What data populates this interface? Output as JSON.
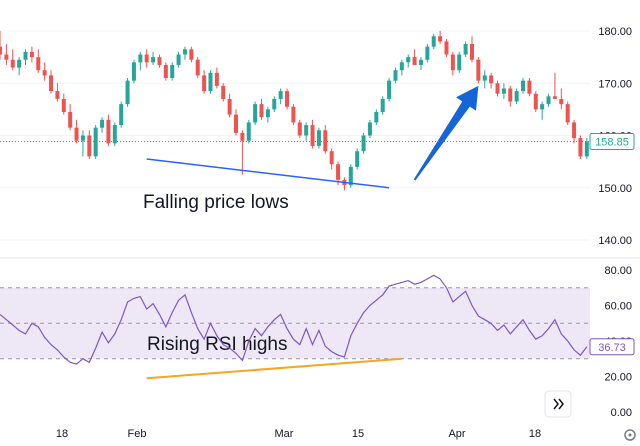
{
  "chart_data": [
    {
      "type": "candlestick",
      "y_ticks": [
        "180.00",
        "170.00",
        "160.00",
        "150.00",
        "140.00"
      ],
      "ylim": [
        136,
        186
      ],
      "last_price_label": "158.85",
      "last_price": 158.85,
      "x_ticks": [
        "18",
        "Feb",
        "Mar",
        "15",
        "Apr",
        "18"
      ],
      "annotation": "Falling price lows",
      "trendline": {
        "from": [
          23,
          155.5
        ],
        "to": [
          61,
          150.0
        ]
      },
      "arrow": {
        "from": [
          65,
          151.5
        ],
        "to": [
          75,
          169.5
        ]
      },
      "up_color": "#26a69a",
      "down_color": "#ef5350",
      "trendline_color": "#2962ff",
      "arrow_color": "#1565d8",
      "candles": [
        [
          177,
          180,
          174.5,
          175.5
        ],
        [
          175.5,
          177.5,
          173.5,
          174.5
        ],
        [
          174.5,
          176.5,
          172.5,
          173.0
        ],
        [
          173.0,
          175.0,
          171.5,
          174.5
        ],
        [
          174.5,
          176.5,
          173.5,
          176.0
        ],
        [
          176.0,
          177.0,
          174.0,
          175.0
        ],
        [
          175.0,
          176.5,
          172.0,
          172.5
        ],
        [
          172.5,
          174.0,
          170.5,
          171.5
        ],
        [
          171.5,
          172.5,
          168.0,
          168.5
        ],
        [
          168.5,
          170.0,
          166.5,
          167.0
        ],
        [
          167.0,
          168.0,
          164.0,
          164.5
        ],
        [
          164.5,
          166.0,
          161.0,
          161.5
        ],
        [
          161.5,
          163.0,
          158.5,
          159.0
        ],
        [
          159.0,
          161.0,
          156.0,
          160.0
        ],
        [
          160.0,
          161.0,
          155.5,
          156.0
        ],
        [
          156.0,
          162.0,
          155.5,
          161.5
        ],
        [
          161.5,
          163.5,
          160.5,
          163.0
        ],
        [
          163.0,
          164.0,
          158.0,
          158.5
        ],
        [
          158.5,
          162.5,
          158.0,
          162.0
        ],
        [
          162.0,
          166.5,
          161.5,
          166.0
        ],
        [
          166.0,
          171.0,
          165.5,
          170.5
        ],
        [
          170.5,
          174.5,
          170.0,
          174.0
        ],
        [
          174.0,
          176.0,
          172.5,
          175.5
        ],
        [
          175.5,
          176.5,
          173.0,
          174.0
        ],
        [
          174.0,
          176.0,
          173.5,
          175.0
        ],
        [
          175.0,
          175.5,
          173.0,
          173.5
        ],
        [
          173.5,
          174.0,
          170.5,
          171.0
        ],
        [
          171.0,
          174.0,
          170.5,
          173.5
        ],
        [
          173.5,
          176.0,
          173.0,
          175.5
        ],
        [
          175.5,
          177.0,
          174.5,
          176.5
        ],
        [
          176.5,
          177.0,
          174.0,
          174.5
        ],
        [
          174.5,
          175.0,
          171.0,
          171.5
        ],
        [
          171.5,
          172.5,
          168.0,
          168.5
        ],
        [
          168.5,
          172.5,
          168.0,
          172.0
        ],
        [
          172.0,
          173.0,
          169.0,
          169.5
        ],
        [
          169.5,
          170.0,
          166.5,
          167.0
        ],
        [
          167.0,
          168.0,
          163.5,
          164.0
        ],
        [
          164.0,
          165.0,
          160.0,
          160.5
        ],
        [
          160.5,
          161.0,
          152.5,
          159.0
        ],
        [
          159.0,
          163.0,
          158.5,
          162.5
        ],
        [
          162.5,
          166.5,
          162.0,
          166.0
        ],
        [
          166.0,
          167.0,
          163.0,
          163.5
        ],
        [
          163.5,
          165.5,
          162.5,
          165.0
        ],
        [
          165.0,
          167.5,
          164.5,
          167.0
        ],
        [
          167.0,
          169.0,
          166.0,
          168.5
        ],
        [
          168.5,
          169.0,
          165.0,
          165.5
        ],
        [
          165.5,
          166.0,
          162.0,
          162.5
        ],
        [
          162.5,
          163.0,
          159.5,
          160.0
        ],
        [
          160.0,
          162.5,
          159.0,
          162.0
        ],
        [
          162.0,
          163.0,
          157.5,
          158.0
        ],
        [
          158.0,
          161.5,
          157.5,
          161.0
        ],
        [
          161.0,
          162.0,
          156.5,
          157.0
        ],
        [
          157.0,
          157.5,
          153.5,
          154.5
        ],
        [
          154.5,
          155.0,
          150.5,
          151.5
        ],
        [
          151.5,
          152.0,
          149.5,
          150.5
        ],
        [
          150.5,
          154.5,
          150.0,
          154.0
        ],
        [
          154.0,
          157.5,
          153.5,
          157.0
        ],
        [
          157.0,
          160.5,
          156.5,
          160.0
        ],
        [
          160.0,
          163.0,
          159.5,
          162.5
        ],
        [
          162.5,
          165.0,
          162.0,
          164.5
        ],
        [
          164.5,
          167.5,
          164.0,
          167.0
        ],
        [
          167.0,
          171.0,
          166.5,
          170.5
        ],
        [
          170.5,
          173.0,
          170.0,
          172.5
        ],
        [
          172.5,
          174.5,
          171.5,
          174.0
        ],
        [
          174.0,
          175.5,
          173.0,
          175.0
        ],
        [
          175.0,
          176.5,
          174.0,
          173.5
        ],
        [
          173.5,
          175.0,
          172.5,
          174.5
        ],
        [
          174.5,
          177.5,
          174.0,
          177.0
        ],
        [
          177.0,
          179.5,
          176.5,
          179.0
        ],
        [
          179.0,
          180.0,
          177.5,
          178.0
        ],
        [
          178.0,
          178.5,
          175.0,
          175.5
        ],
        [
          175.5,
          176.0,
          171.5,
          172.5
        ],
        [
          172.5,
          176.0,
          172.0,
          175.5
        ],
        [
          175.5,
          178.0,
          175.0,
          177.5
        ],
        [
          177.5,
          179.0,
          174.0,
          174.5
        ],
        [
          174.5,
          175.0,
          170.0,
          170.5
        ],
        [
          170.5,
          172.5,
          169.0,
          171.5
        ],
        [
          171.5,
          172.0,
          169.0,
          170.0
        ],
        [
          170.0,
          170.5,
          167.5,
          168.0
        ],
        [
          168.0,
          170.0,
          167.0,
          169.0
        ],
        [
          169.0,
          169.5,
          165.5,
          166.5
        ],
        [
          166.5,
          169.0,
          166.0,
          168.5
        ],
        [
          168.5,
          171.0,
          168.0,
          170.5
        ],
        [
          170.5,
          171.0,
          167.5,
          168.0
        ],
        [
          168.0,
          168.5,
          164.5,
          165.0
        ],
        [
          165.0,
          166.5,
          163.0,
          166.0
        ],
        [
          166.0,
          168.0,
          165.5,
          167.5
        ],
        [
          167.5,
          172.0,
          167.0,
          167.0
        ],
        [
          167.0,
          169.0,
          165.0,
          166.0
        ],
        [
          166.0,
          166.5,
          162.0,
          162.5
        ],
        [
          162.5,
          163.0,
          158.5,
          159.5
        ],
        [
          159.5,
          160.0,
          155.5,
          156.0
        ],
        [
          156.0,
          159.5,
          155.5,
          158.85
        ]
      ]
    },
    {
      "type": "line",
      "y_ticks": [
        "80.00",
        "60.00",
        "40.00",
        "20.00",
        "0.00"
      ],
      "ylim": [
        0,
        80
      ],
      "bands": [
        30,
        50,
        70
      ],
      "last_value_label": "36.73",
      "last_value": 36.73,
      "annotation": "Rising RSI highs",
      "trendline": {
        "from": [
          23,
          19.0
        ],
        "to": [
          63,
          30.0
        ]
      },
      "line_color": "#7e57c2",
      "band_fill": "#ede7f6",
      "trendline_color": "#f6a623",
      "values": [
        55,
        52,
        49,
        46,
        44,
        50,
        48,
        42,
        38,
        35,
        31,
        28,
        27,
        30,
        28,
        36,
        45,
        39,
        44,
        52,
        62,
        64,
        65,
        58,
        61,
        55,
        48,
        56,
        63,
        66,
        56,
        47,
        41,
        50,
        43,
        38,
        36,
        33,
        29,
        40,
        47,
        43,
        48,
        52,
        55,
        47,
        41,
        38,
        47,
        38,
        46,
        37,
        34,
        32,
        31,
        43,
        50,
        56,
        60,
        63,
        66,
        71,
        72,
        73,
        74,
        72,
        73,
        75,
        77,
        75,
        70,
        62,
        65,
        68,
        60,
        54,
        52,
        50,
        46,
        49,
        44,
        48,
        52,
        46,
        41,
        43,
        47,
        52,
        44,
        40,
        35,
        32,
        36.73
      ]
    }
  ],
  "ui": {
    "scroll_button_icon": "double-chevron-right-icon",
    "settings_icon": "gear-icon"
  }
}
